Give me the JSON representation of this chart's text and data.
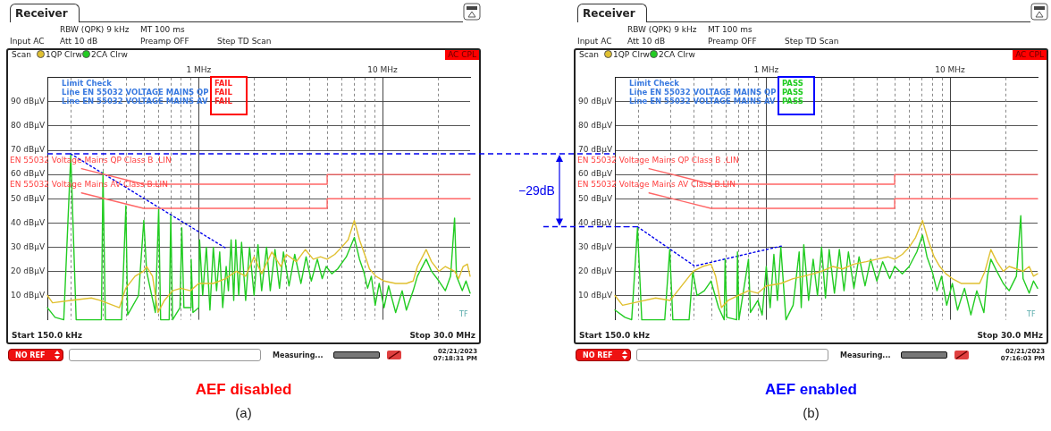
{
  "chart_data": [
    {
      "type": "line",
      "title": "AEF disabled",
      "annotations": [
        "Receiver",
        "RBW (QPK) 9 kHz",
        "MT 100 ms",
        "Input AC",
        "Att 10 dB",
        "Preamp OFF",
        "Step TD Scan",
        "Scan",
        "AC CPL",
        "Limit Check",
        "Line EN 55032 VOLTAGE MAINS QP",
        "Line EN 55032 VOLTAGE MAINS AV",
        "FAIL",
        "FAIL",
        "FAIL",
        "Start 150.0 kHz",
        "Stop 30.0 MHz",
        "NO REF",
        "Measuring...",
        "02/21/2023",
        "07:18:31 PM",
        "TF",
        "(a)",
        "EN 55032 Voltage Mains QP Class B .LIN",
        "EN 55032 Voltage Mains AV Class B.LIN",
        "−29dB"
      ],
      "xlim": [
        0.15,
        30
      ],
      "log": "x",
      "xticks": [
        {
          "value": 0.2,
          "label": null
        },
        {
          "value": 0.3,
          "label": null
        },
        {
          "value": 0.4,
          "label": null
        },
        {
          "value": 0.5,
          "label": null
        },
        {
          "value": 0.6,
          "label": null
        },
        {
          "value": 0.7,
          "label": null
        },
        {
          "value": 0.8,
          "label": null
        },
        {
          "value": 0.9,
          "label": null
        },
        {
          "value": 1,
          "label": "1 MHz"
        },
        {
          "value": 2,
          "label": null
        },
        {
          "value": 3,
          "label": null
        },
        {
          "value": 4,
          "label": null
        },
        {
          "value": 5,
          "label": null
        },
        {
          "value": 6,
          "label": null
        },
        {
          "value": 7,
          "label": null
        },
        {
          "value": 8,
          "label": null
        },
        {
          "value": 9,
          "label": null
        },
        {
          "value": 10,
          "label": "10 MHz"
        },
        {
          "value": 20,
          "label": null
        }
      ],
      "ylim": [
        0,
        100
      ],
      "yticks": [
        {
          "value": 10,
          "label": "10 dBµV"
        },
        {
          "value": 20,
          "label": "20 dBµV"
        },
        {
          "value": 30,
          "label": "30 dBµV"
        },
        {
          "value": 40,
          "label": "40 dBµV"
        },
        {
          "value": 50,
          "label": "50 dBµV"
        },
        {
          "value": 60,
          "label": "60 dBµV"
        },
        {
          "value": 70,
          "label": "70 dBµV"
        },
        {
          "value": 80,
          "label": "80 dBµV"
        },
        {
          "value": 90,
          "label": "90 dBµV"
        }
      ],
      "grid": true,
      "legend": "top left",
      "marker": "none",
      "ref_lines": [
        {
          "axis": "y",
          "value": 68.5,
          "color": "#0000ee",
          "line_style": "dashed"
        }
      ],
      "series": [
        {
          "color": "#ff6666",
          "x": [
            0.23,
            0.5,
            5,
            5,
            30
          ],
          "values": [
            62.4,
            56,
            56,
            60,
            60
          ]
        },
        {
          "color": "#ff6666",
          "x": [
            0.23,
            0.5,
            5,
            5,
            30
          ],
          "values": [
            52.4,
            46,
            46,
            50,
            50
          ]
        },
        {
          "name": "1QP Clrw",
          "color": "#e0c030",
          "x": [
            0.15,
            0.16,
            0.2,
            0.26,
            0.29,
            0.37,
            0.4,
            0.45,
            0.5,
            0.52,
            0.56,
            0.6,
            0.65,
            0.72,
            0.8,
            0.9,
            1.0,
            1.2,
            1.4,
            1.6,
            1.8,
            2.0,
            2.2,
            2.5,
            2.8,
            3.0,
            3.4,
            3.8,
            4.2,
            4.6,
            5.0,
            5.5,
            6.0,
            6.5,
            7.03,
            7.5,
            8.0,
            8.5,
            9.2,
            10.2,
            11.8,
            13.5,
            14.7,
            15.5,
            17.3,
            18.5,
            20.3,
            22,
            24.7,
            26,
            27.5,
            29,
            30
          ],
          "values": [
            10,
            7,
            8,
            9,
            8,
            5,
            13,
            18,
            20,
            22,
            18,
            3,
            8,
            12,
            13,
            12,
            15,
            15,
            17,
            20,
            18,
            26,
            19,
            28,
            22,
            27,
            24,
            29,
            25,
            26,
            25,
            27,
            30,
            33,
            41,
            33,
            27,
            21,
            18,
            16,
            15,
            15,
            16,
            22,
            29,
            24,
            20,
            22,
            20,
            17,
            22,
            23,
            18
          ]
        },
        {
          "name": "2CA Clrw",
          "color": "#22cc22",
          "x": [
            0.15,
            0.165,
            0.184,
            0.201,
            0.215,
            0.27,
            0.295,
            0.301,
            0.31,
            0.38,
            0.401,
            0.41,
            0.47,
            0.502,
            0.52,
            0.58,
            0.605,
            0.62,
            0.69,
            0.704,
            0.72,
            0.79,
            0.808,
            0.83,
            0.9,
            0.909,
            0.93,
            1.0,
            1.01,
            1.05,
            1.1,
            1.15,
            1.2,
            1.25,
            1.3,
            1.35,
            1.41,
            1.45,
            1.5,
            1.55,
            1.59,
            1.65,
            1.71,
            1.8,
            1.89,
            2.0,
            2.1,
            2.2,
            2.34,
            2.45,
            2.6,
            2.75,
            2.89,
            3.1,
            3.33,
            3.6,
            3.84,
            4.1,
            4.42,
            4.7,
            4.94,
            5.3,
            5.7,
            6.36,
            7.03,
            7.5,
            7.9,
            8.3,
            8.7,
            9.13,
            9.6,
            10.2,
            10.8,
            11.8,
            12.8,
            13.5,
            14.7,
            15.5,
            17.3,
            18.5,
            20.3,
            22,
            23.5,
            24.7,
            25.3,
            27.2,
            28.5,
            30
          ],
          "values": [
            5,
            1,
            0,
            68,
            0,
            0,
            0,
            61,
            0,
            0,
            47,
            2,
            10,
            41,
            20,
            3,
            46,
            0,
            0,
            43,
            0,
            5,
            38,
            5,
            5,
            25,
            3,
            5,
            33,
            10,
            30,
            4,
            30,
            12,
            28,
            5,
            22,
            12,
            33,
            8,
            33,
            10,
            32,
            8,
            30,
            10,
            31,
            12,
            30,
            12,
            29,
            13,
            28,
            14,
            27,
            15,
            26,
            16,
            25,
            17,
            22,
            19,
            21,
            26,
            34,
            25,
            20,
            13,
            18,
            6,
            15,
            5,
            14,
            3,
            12,
            4,
            12,
            18,
            25,
            20,
            16,
            12,
            18,
            42,
            18,
            12,
            16,
            11
          ]
        },
        {
          "color": "#0000ee",
          "line_style": "dotted",
          "x": [
            0.201,
            1.4
          ],
          "values": [
            68.5,
            29.6
          ]
        }
      ]
    },
    {
      "type": "line",
      "title": "AEF enabled",
      "annotations": [
        "Receiver",
        "RBW (QPK) 9 kHz",
        "MT 100 ms",
        "Input AC",
        "Att 10 dB",
        "Preamp OFF",
        "Step TD Scan",
        "Scan",
        "AC CPL",
        "Limit Check",
        "Line EN 55032 VOLTAGE MAINS QP",
        "Line EN 55032 VOLTAGE MAINS AV",
        "PASS",
        "PASS",
        "PASS",
        "Start 150.0 kHz",
        "Stop 30.0 MHz",
        "NO REF",
        "Measuring...",
        "02/21/2023",
        "07:16:03 PM",
        "TF",
        "(b)",
        "EN 55032 Voltage Mains QP Class B .LIN",
        "EN 55032 Voltage Mains AV Class B.LIN"
      ],
      "xlim": [
        0.15,
        30
      ],
      "log": "x",
      "xticks": [
        {
          "value": 0.2,
          "label": null
        },
        {
          "value": 0.3,
          "label": null
        },
        {
          "value": 0.4,
          "label": null
        },
        {
          "value": 0.5,
          "label": null
        },
        {
          "value": 0.6,
          "label": null
        },
        {
          "value": 0.7,
          "label": null
        },
        {
          "value": 0.8,
          "label": null
        },
        {
          "value": 0.9,
          "label": null
        },
        {
          "value": 1,
          "label": "1 MHz"
        },
        {
          "value": 2,
          "label": null
        },
        {
          "value": 3,
          "label": null
        },
        {
          "value": 4,
          "label": null
        },
        {
          "value": 5,
          "label": null
        },
        {
          "value": 6,
          "label": null
        },
        {
          "value": 7,
          "label": null
        },
        {
          "value": 8,
          "label": null
        },
        {
          "value": 9,
          "label": null
        },
        {
          "value": 10,
          "label": "10 MHz"
        },
        {
          "value": 20,
          "label": null
        }
      ],
      "ylim": [
        0,
        100
      ],
      "yticks": [
        {
          "value": 10,
          "label": "10 dBµV"
        },
        {
          "value": 20,
          "label": "20 dBµV"
        },
        {
          "value": 30,
          "label": "30 dBµV"
        },
        {
          "value": 40,
          "label": "40 dBµV"
        },
        {
          "value": 50,
          "label": "50 dBµV"
        },
        {
          "value": 60,
          "label": "60 dBµV"
        },
        {
          "value": 70,
          "label": "70 dBµV"
        },
        {
          "value": 80,
          "label": "80 dBµV"
        },
        {
          "value": 90,
          "label": "90 dBµV"
        }
      ],
      "grid": true,
      "legend": "top left",
      "marker": "none",
      "series": [
        {
          "color": "#ff6666",
          "x": [
            0.23,
            0.5,
            5,
            5,
            30
          ],
          "values": [
            62.4,
            56,
            56,
            60,
            60
          ]
        },
        {
          "color": "#ff6666",
          "x": [
            0.23,
            0.5,
            5,
            5,
            30
          ],
          "values": [
            52.4,
            46,
            46,
            50,
            50
          ]
        },
        {
          "name": "1QP Clrw",
          "color": "#e0c030",
          "x": [
            0.15,
            0.165,
            0.19,
            0.25,
            0.3,
            0.33,
            0.4,
            0.45,
            0.5,
            0.53,
            0.57,
            0.62,
            0.7,
            0.8,
            0.9,
            1.0,
            1.2,
            1.4,
            1.6,
            1.8,
            2.0,
            2.3,
            2.6,
            3.0,
            3.5,
            4.0,
            4.6,
            5.0,
            5.5,
            6.0,
            6.5,
            7.09,
            7.6,
            8.2,
            8.8,
            9.5,
            10.3,
            11.5,
            13,
            14.5,
            15.5,
            16.7,
            18,
            19.5,
            21,
            23,
            25,
            27,
            28.5,
            30
          ],
          "values": [
            10,
            6,
            7,
            9,
            8,
            12,
            20,
            22,
            23,
            18,
            5,
            8,
            10,
            12,
            11,
            14,
            15,
            17,
            18,
            19,
            20,
            22,
            21,
            23,
            24,
            25,
            26,
            25,
            27,
            30,
            34,
            41,
            33,
            26,
            22,
            19,
            17,
            15,
            15,
            15,
            20,
            29,
            24,
            20,
            22,
            21,
            20,
            22,
            18,
            19
          ]
        },
        {
          "name": "2CA Clrw",
          "color": "#22cc22",
          "x": [
            0.15,
            0.17,
            0.185,
            0.199,
            0.21,
            0.28,
            0.298,
            0.31,
            0.38,
            0.398,
            0.42,
            0.46,
            0.5,
            0.55,
            0.59,
            0.597,
            0.61,
            0.69,
            0.697,
            0.71,
            0.8,
            0.82,
            0.9,
            0.95,
            1.0,
            1.05,
            1.1,
            1.15,
            1.2,
            1.28,
            1.4,
            1.51,
            1.55,
            1.6,
            1.7,
            1.8,
            1.9,
            2.0,
            2.1,
            2.2,
            2.35,
            2.5,
            2.65,
            2.8,
            3.0,
            3.2,
            3.45,
            3.7,
            4.0,
            4.3,
            4.7,
            5.0,
            5.5,
            6.0,
            6.6,
            7.09,
            7.5,
            8,
            8.5,
            9,
            9.6,
            10.3,
            11,
            12,
            13,
            14,
            15.3,
            16,
            16.7,
            18,
            19.5,
            21,
            23,
            24.3,
            25,
            27,
            28.5,
            30
          ],
          "values": [
            4,
            1,
            0,
            38,
            0,
            0,
            29,
            0,
            0,
            20,
            10,
            12,
            16,
            5,
            0,
            25,
            1,
            0,
            28,
            0,
            25,
            3,
            8,
            2,
            22,
            5,
            27,
            8,
            30,
            0,
            6,
            28,
            5,
            31,
            8,
            25,
            10,
            30,
            9,
            29,
            11,
            29,
            12,
            28,
            13,
            26,
            14,
            25,
            16,
            24,
            17,
            22,
            19,
            22,
            28,
            35,
            26,
            20,
            12,
            18,
            6,
            15,
            4,
            13,
            2,
            12,
            3,
            18,
            25,
            20,
            15,
            12,
            18,
            43,
            17,
            11,
            16,
            13
          ]
        },
        {
          "color": "#0000ee",
          "line_style": "dotted",
          "x": [
            0.199,
            0.407,
            1.22
          ],
          "values": [
            38.4,
            22.2,
            30.5
          ]
        },
        {
          "color": "#0000ee",
          "line_style": "dashed",
          "x": [
            0.15,
            0.199
          ],
          "values": [
            38.4,
            38.4
          ]
        }
      ]
    }
  ]
}
